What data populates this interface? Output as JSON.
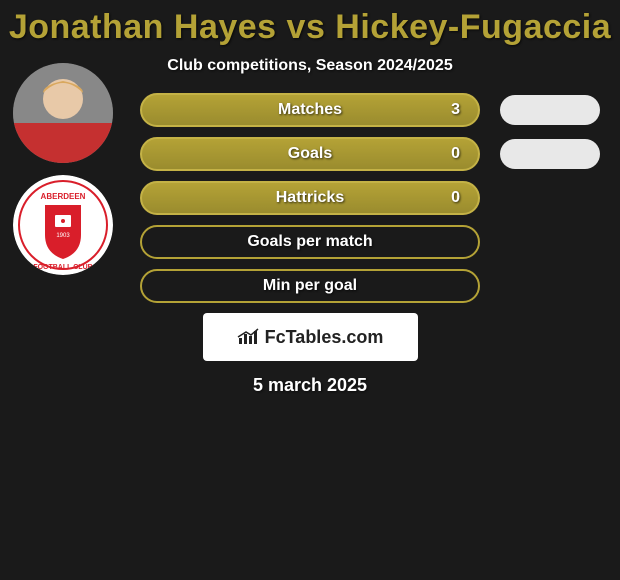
{
  "title": "Jonathan Hayes vs Hickey-Fugaccia",
  "subtitle": "Club competitions, Season 2024/2025",
  "date": "5 march 2025",
  "watermark": "FcTables.com",
  "colors": {
    "title": "#b4a236",
    "bar_fill": "#b4a236",
    "bar_border_filled": "#c4b246",
    "bar_border_outline": "#b4a236",
    "pill": "#e8e8e8",
    "bg": "#1a1a1a",
    "text": "#ffffff"
  },
  "stats": [
    {
      "label": "Matches",
      "value": "3",
      "filled": true,
      "has_pill": true
    },
    {
      "label": "Goals",
      "value": "0",
      "filled": true,
      "has_pill": true
    },
    {
      "label": "Hattricks",
      "value": "0",
      "filled": true,
      "has_pill": false
    },
    {
      "label": "Goals per match",
      "value": "",
      "filled": false,
      "has_pill": false
    },
    {
      "label": "Min per goal",
      "value": "",
      "filled": false,
      "has_pill": false
    }
  ],
  "avatars": {
    "player_primary": "#c53030",
    "club_bg": "#ffffff",
    "club_primary": "#d91e2a"
  }
}
